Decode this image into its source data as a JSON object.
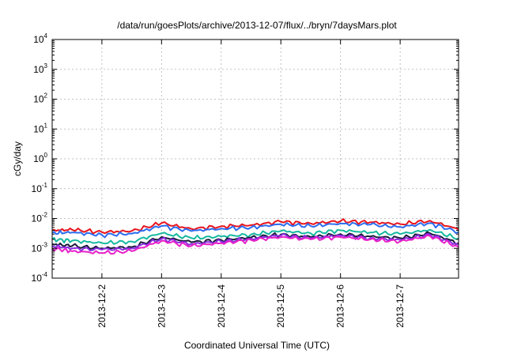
{
  "chart_data": {
    "type": "line",
    "title": "/data/run/goesPlots/archive/2013-12-07/flux/../bryn/7daysMars.plot",
    "xlabel": "Coordinated Universal Time (UTC)",
    "ylabel": "cGy/day",
    "yscale": "log",
    "ylim": [
      0.0001,
      10000
    ],
    "xlim": [
      "2013-12-01T04:00",
      "2013-12-07T23:30"
    ],
    "grid": true,
    "legend": "none",
    "x_ticks": [
      "2013-12-2",
      "2013-12-3",
      "2013-12-4",
      "2013-12-5",
      "2013-12-6",
      "2013-12-7"
    ],
    "y_ticks": [
      {
        "base": "10",
        "exp": "-4"
      },
      {
        "base": "10",
        "exp": "-3"
      },
      {
        "base": "10",
        "exp": "-2"
      },
      {
        "base": "10",
        "exp": "-1"
      },
      {
        "base": "10",
        "exp": "0"
      },
      {
        "base": "10",
        "exp": "1"
      },
      {
        "base": "10",
        "exp": "2"
      },
      {
        "base": "10",
        "exp": "3"
      },
      {
        "base": "10",
        "exp": "4"
      }
    ],
    "x": [
      "2013-12-01T04:00",
      "2013-12-01T12:00",
      "2013-12-02T00:00",
      "2013-12-02T12:00",
      "2013-12-03T00:00",
      "2013-12-03T12:00",
      "2013-12-04T00:00",
      "2013-12-04T12:00",
      "2013-12-05T00:00",
      "2013-12-05T12:00",
      "2013-12-06T00:00",
      "2013-12-06T12:00",
      "2013-12-07T00:00",
      "2013-12-07T12:00",
      "2013-12-07T23:30"
    ],
    "series": [
      {
        "color": "#e8141c",
        "values": [
          0.004,
          0.0042,
          0.0035,
          0.0038,
          0.007,
          0.0045,
          0.0055,
          0.006,
          0.0078,
          0.0068,
          0.0082,
          0.0075,
          0.0065,
          0.0085,
          0.0043
        ]
      },
      {
        "color": "#2b6cf0",
        "values": [
          0.0033,
          0.0034,
          0.0028,
          0.0031,
          0.0056,
          0.0038,
          0.0046,
          0.005,
          0.0064,
          0.0056,
          0.0068,
          0.0062,
          0.0052,
          0.007,
          0.0035
        ]
      },
      {
        "color": "#17b8a0",
        "values": [
          0.002,
          0.0018,
          0.0015,
          0.0017,
          0.0032,
          0.0022,
          0.0025,
          0.0029,
          0.0038,
          0.0032,
          0.004,
          0.0034,
          0.003,
          0.0042,
          0.0021
        ]
      },
      {
        "color": "#1a1a3a",
        "values": [
          0.0014,
          0.0012,
          0.001,
          0.0011,
          0.0024,
          0.0016,
          0.0019,
          0.0023,
          0.0029,
          0.0024,
          0.003,
          0.0025,
          0.0022,
          0.0032,
          0.0015
        ]
      },
      {
        "color": "#8a2be2",
        "values": [
          0.0012,
          0.001,
          0.0009,
          0.001,
          0.0021,
          0.0014,
          0.0017,
          0.0021,
          0.0027,
          0.0022,
          0.0027,
          0.0022,
          0.0019,
          0.0029,
          0.0013
        ]
      },
      {
        "color": "#e820c8",
        "values": [
          0.001,
          0.0008,
          0.0007,
          0.0008,
          0.0018,
          0.0012,
          0.0015,
          0.0019,
          0.0024,
          0.002,
          0.0024,
          0.002,
          0.0017,
          0.0026,
          0.0011
        ]
      }
    ]
  }
}
